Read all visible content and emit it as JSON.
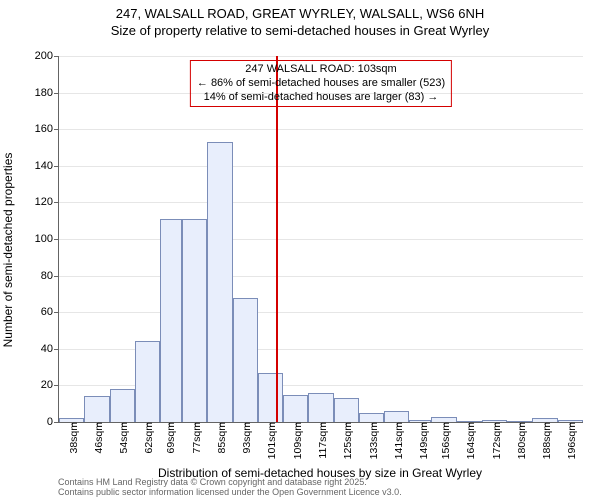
{
  "title_line1": "247, WALSALL ROAD, GREAT WYRLEY, WALSALL, WS6 6NH",
  "title_line2": "Size of property relative to semi-detached houses in Great Wyrley",
  "ylabel": "Number of semi-detached properties",
  "xlabel": "Distribution of semi-detached houses by size in Great Wyrley",
  "footer_line1": "Contains HM Land Registry data © Crown copyright and database right 2025.",
  "footer_line2": "Contains public sector information licensed under the Open Government Licence v3.0.",
  "chart": {
    "type": "histogram",
    "ylim": [
      0,
      200
    ],
    "ytick_step": 20,
    "yticks": [
      0,
      20,
      40,
      60,
      80,
      100,
      120,
      140,
      160,
      180,
      200
    ],
    "xticks": [
      38,
      46,
      54,
      62,
      69,
      77,
      85,
      93,
      101,
      109,
      117,
      125,
      133,
      141,
      149,
      156,
      164,
      172,
      180,
      188,
      196
    ],
    "xtick_unit": "sqm",
    "x_min": 34,
    "x_max": 200,
    "bar_fill": "#e8eefc",
    "bar_stroke": "#7b8db8",
    "grid_color": "#e6e6e6",
    "axis_color": "#646464",
    "background_color": "#ffffff",
    "bars": [
      {
        "x0": 34,
        "x1": 42,
        "y": 2
      },
      {
        "x0": 42,
        "x1": 50,
        "y": 14
      },
      {
        "x0": 50,
        "x1": 58,
        "y": 18
      },
      {
        "x0": 58,
        "x1": 66,
        "y": 44
      },
      {
        "x0": 66,
        "x1": 73,
        "y": 111
      },
      {
        "x0": 73,
        "x1": 81,
        "y": 111
      },
      {
        "x0": 81,
        "x1": 89,
        "y": 153
      },
      {
        "x0": 89,
        "x1": 97,
        "y": 68
      },
      {
        "x0": 97,
        "x1": 105,
        "y": 27
      },
      {
        "x0": 105,
        "x1": 113,
        "y": 15
      },
      {
        "x0": 113,
        "x1": 121,
        "y": 16
      },
      {
        "x0": 121,
        "x1": 129,
        "y": 13
      },
      {
        "x0": 129,
        "x1": 137,
        "y": 5
      },
      {
        "x0": 137,
        "x1": 145,
        "y": 6
      },
      {
        "x0": 145,
        "x1": 152,
        "y": 1
      },
      {
        "x0": 152,
        "x1": 160,
        "y": 3
      },
      {
        "x0": 160,
        "x1": 168,
        "y": 0
      },
      {
        "x0": 168,
        "x1": 176,
        "y": 1
      },
      {
        "x0": 176,
        "x1": 184,
        "y": 0
      },
      {
        "x0": 184,
        "x1": 192,
        "y": 2
      },
      {
        "x0": 192,
        "x1": 200,
        "y": 1
      }
    ],
    "reference_line": {
      "x": 103,
      "color": "#d40000",
      "width": 2
    },
    "annotation": {
      "line1": "247 WALSALL ROAD: 103sqm",
      "line2": "← 86% of semi-detached houses are smaller (523)",
      "line3": "14% of semi-detached houses are larger (83) →",
      "border_color": "#d40000",
      "text_color": "#000000",
      "fontsize": 11
    }
  }
}
